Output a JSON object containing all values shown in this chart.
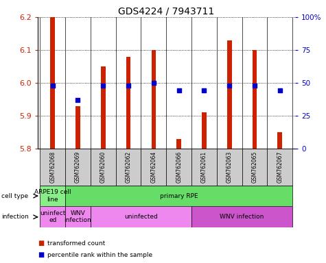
{
  "title": "GDS4224 / 7943711",
  "samples": [
    "GSM762068",
    "GSM762069",
    "GSM762060",
    "GSM762062",
    "GSM762064",
    "GSM762066",
    "GSM762061",
    "GSM762063",
    "GSM762065",
    "GSM762067"
  ],
  "transformed_counts": [
    6.2,
    5.93,
    6.05,
    6.08,
    6.1,
    5.83,
    5.91,
    6.13,
    6.1,
    5.85
  ],
  "percentile_ranks": [
    48,
    37,
    48,
    48,
    50,
    44,
    44,
    48,
    48,
    44
  ],
  "ylim": [
    5.8,
    6.2
  ],
  "yticks": [
    5.8,
    5.9,
    6.0,
    6.1,
    6.2
  ],
  "y2lim": [
    0,
    100
  ],
  "y2ticks": [
    0,
    25,
    50,
    75,
    100
  ],
  "y2ticklabels": [
    "0",
    "25",
    "50",
    "75",
    "100%"
  ],
  "bar_color": "#cc2200",
  "dot_color": "#0000cc",
  "bar_bottom": 5.8,
  "cell_type_labels": [
    {
      "label": "ARPE19 cell\nline",
      "start": 0,
      "end": 1,
      "color": "#88ee88"
    },
    {
      "label": "primary RPE",
      "start": 1,
      "end": 10,
      "color": "#66dd66"
    }
  ],
  "infection_labels": [
    {
      "label": "uninfect\ned",
      "start": 0,
      "end": 1,
      "color": "#ee88ee"
    },
    {
      "label": "WNV\ninfection",
      "start": 1,
      "end": 2,
      "color": "#ee88ee"
    },
    {
      "label": "uninfected",
      "start": 2,
      "end": 6,
      "color": "#ee88ee"
    },
    {
      "label": "WNV infection",
      "start": 6,
      "end": 10,
      "color": "#cc55cc"
    }
  ],
  "legend_items": [
    {
      "label": "transformed count",
      "color": "#cc2200"
    },
    {
      "label": "percentile rank within the sample",
      "color": "#0000cc"
    }
  ],
  "ylabel_color": "#cc2200",
  "y2label_color": "#0000cc",
  "tick_bg_color": "#cccccc",
  "bar_width": 0.18
}
